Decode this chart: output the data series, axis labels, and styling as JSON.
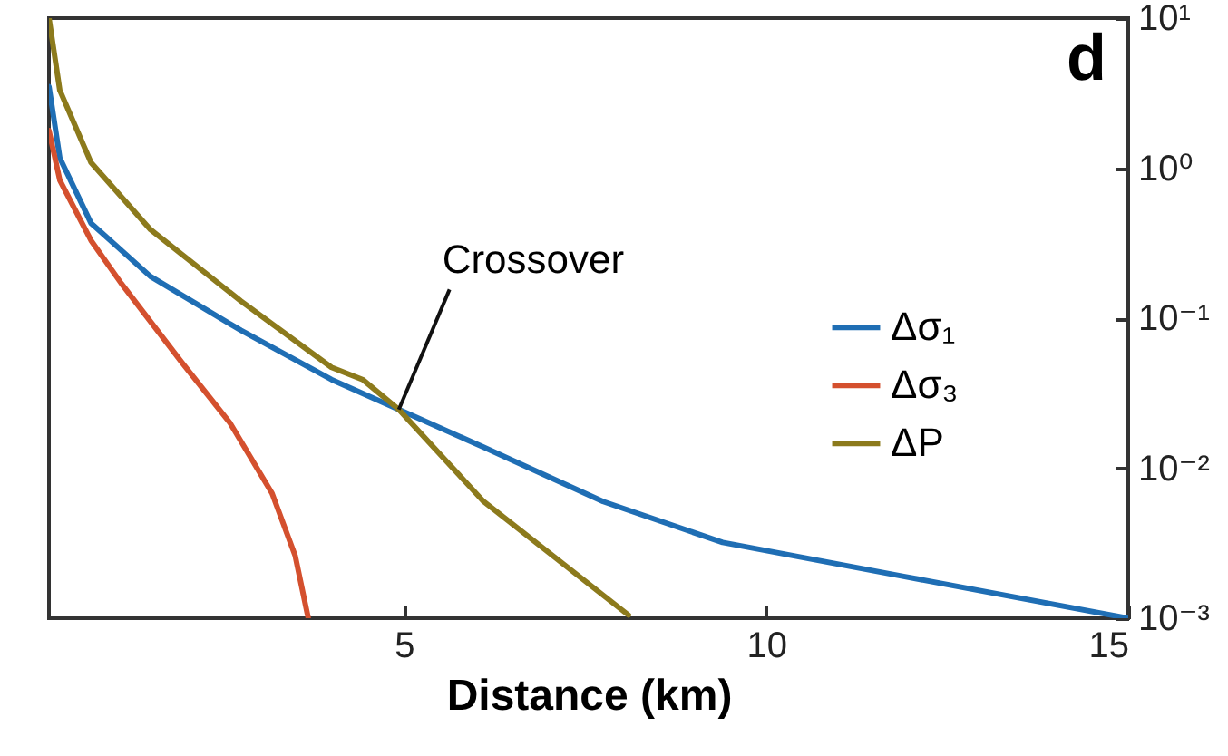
{
  "chart_data": {
    "type": "line",
    "xlabel": "Distance (km)",
    "log": "y",
    "xlim": [
      0.1,
      15
    ],
    "xticks": [
      5,
      10,
      15
    ],
    "ylim": [
      0.001,
      10
    ],
    "yticks": [
      {
        "value": 0.001,
        "label": "10⁻³"
      },
      {
        "value": 0.01,
        "label": "10⁻²"
      },
      {
        "value": 0.1,
        "label": "10⁻¹"
      },
      {
        "value": 1,
        "label": "10⁰"
      },
      {
        "value": 10,
        "label": "10¹"
      }
    ],
    "legend": "right",
    "annotations": [
      "d",
      {
        "text": "Crossover",
        "x": 4.93,
        "y": 0.0246
      }
    ],
    "series": [
      {
        "name": "Δσ₁",
        "color": "#1f6eb4",
        "x": [
          0.1,
          0.25,
          0.68,
          1.5,
          2.75,
          4.0,
          4.93,
          6.1,
          7.75,
          9.4,
          11.9,
          15
        ],
        "values": [
          3.5,
          1.17,
          0.43,
          0.19,
          0.083,
          0.039,
          0.0246,
          0.0138,
          0.006,
          0.0032,
          0.0019,
          0.001
        ]
      },
      {
        "name": "Δσ₃",
        "color": "#d4502e",
        "x": [
          0.1,
          0.25,
          0.68,
          1.1,
          1.93,
          2.6,
          3.18,
          3.5,
          3.68
        ],
        "values": [
          1.78,
          0.83,
          0.33,
          0.17,
          0.051,
          0.02,
          0.0068,
          0.0026,
          0.001
        ]
      },
      {
        "name": "ΔP",
        "color": "#8c7a1c",
        "x": [
          0.1,
          0.25,
          0.68,
          1.5,
          2.75,
          4.0,
          4.43,
          4.93,
          6.1,
          8.1
        ],
        "values": [
          10,
          3.3,
          1.09,
          0.39,
          0.13,
          0.047,
          0.039,
          0.0246,
          0.006,
          0.00105
        ]
      }
    ]
  }
}
